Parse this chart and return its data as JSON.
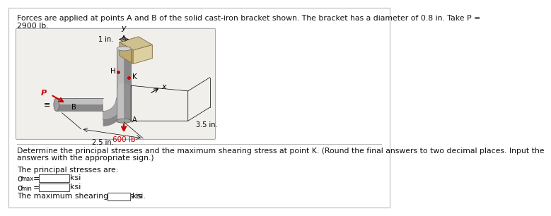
{
  "title_line1": "Forces are applied at points A and B of the solid cast-iron bracket shown. The bracket has a diameter of 0.8 in. Take P =",
  "title_line2": "2900 lb.",
  "question_line1": "Determine the principal stresses and the maximum shearing stress at point K. (Round the final answers to two decimal places. Input the",
  "question_line2": "answers with the appropriate sign.)",
  "principal_stresses_label": "The principal stresses are:",
  "sigma_max_label": "σmax =",
  "sigma_max_unit": "ksi",
  "sigma_min_label": "σmin =",
  "sigma_min_unit": "ksi",
  "shear_label": "The maximum shearing stress is",
  "shear_unit": "ksi.",
  "dim_1in": "1 in.",
  "dim_25in": "2.5 in.",
  "dim_35in": "3.5 in.",
  "label_600lb": "600 lb",
  "label_P": "P",
  "label_B": "B",
  "label_A": "A",
  "label_H": "H",
  "label_K": "K",
  "label_x": "x",
  "label_y": "y",
  "bg_color": "#f0eeeb",
  "white": "#ffffff",
  "bracket_mid": "#b0b0b0",
  "bracket_light": "#cccccc",
  "bracket_dark": "#808080",
  "wall_top": "#cfc090",
  "wall_front": "#bfaa70",
  "wall_side": "#ddd0a0",
  "arrow_color": "#cc0000",
  "text_color": "#111111",
  "border_color": "#c0c0c0"
}
